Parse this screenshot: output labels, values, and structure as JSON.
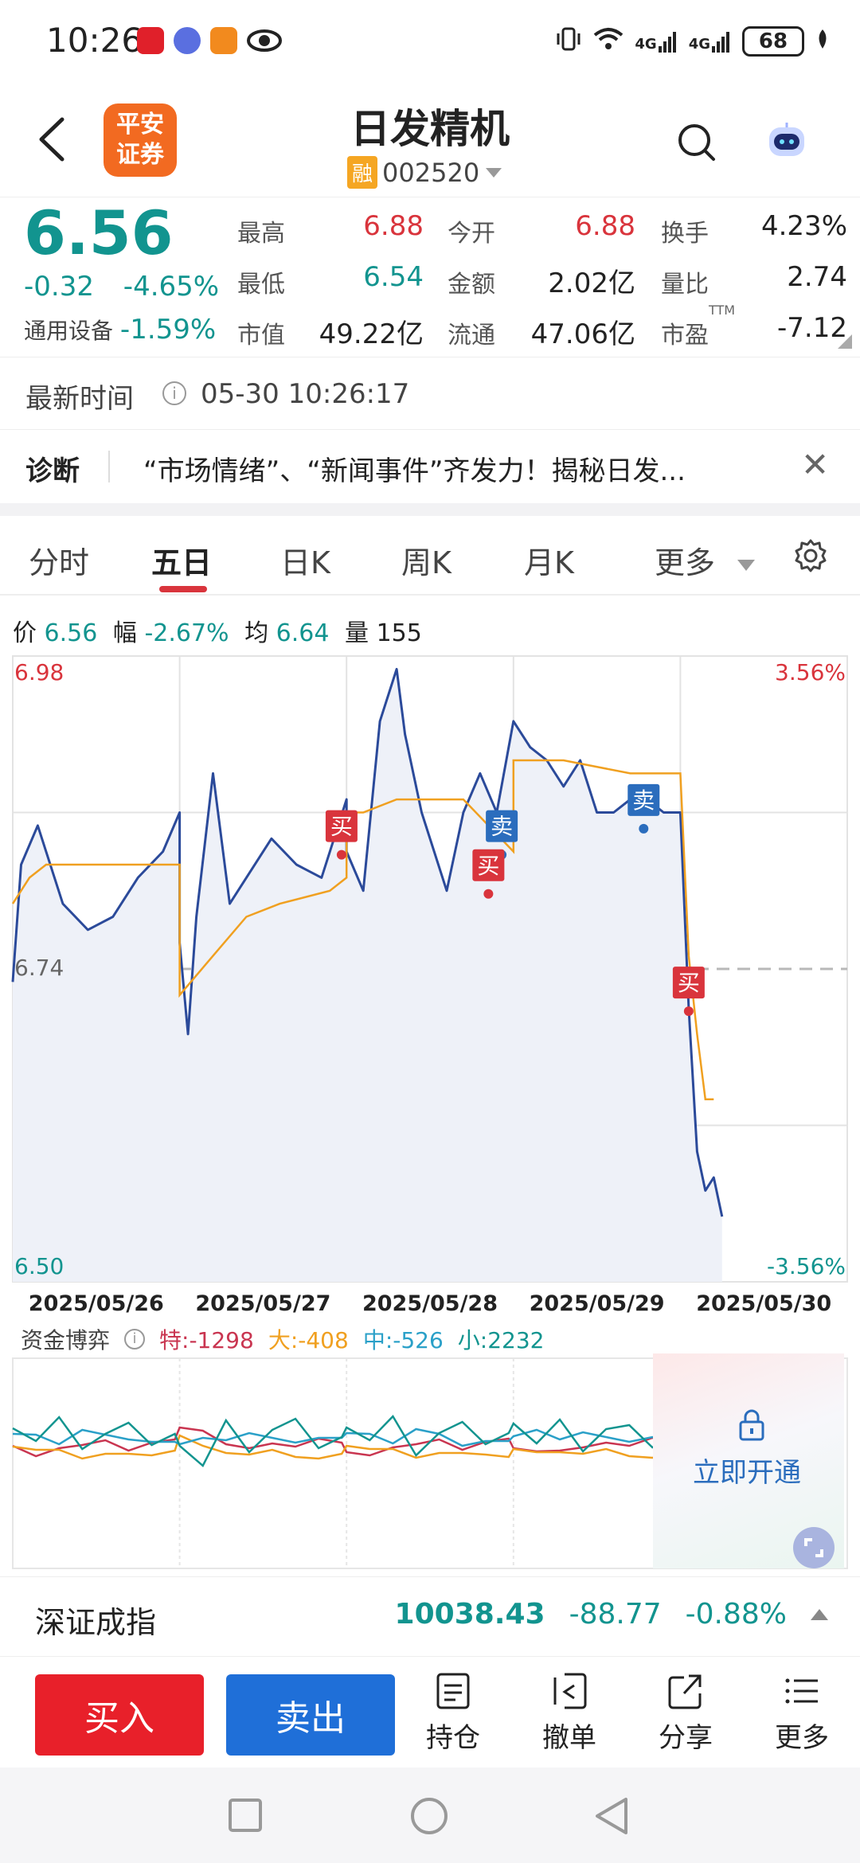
{
  "status_bar": {
    "time": "10:26",
    "network": "4G",
    "battery": "68"
  },
  "header": {
    "broker_logo_text": "平安\n证券",
    "stock_name": "日发精机",
    "rong_badge": "融",
    "stock_code": "002520"
  },
  "quote": {
    "last_price": "6.56",
    "change": "-0.32",
    "change_pct": "-4.65%",
    "sector_name": "通用设备",
    "sector_pct": "-1.59%",
    "fields": [
      {
        "label": "最高",
        "value": "6.88",
        "color": "#d9343c"
      },
      {
        "label": "今开",
        "value": "6.88",
        "color": "#d9343c"
      },
      {
        "label": "换手",
        "value": "4.23%",
        "color": "#222222"
      },
      {
        "label": "最低",
        "value": "6.54",
        "color": "#12948f"
      },
      {
        "label": "金额",
        "value": "2.02亿",
        "color": "#222222"
      },
      {
        "label": "量比",
        "value": "2.74",
        "color": "#222222"
      },
      {
        "label": "市值",
        "value": "49.22亿",
        "color": "#222222"
      },
      {
        "label": "流通",
        "value": "47.06亿",
        "color": "#222222"
      },
      {
        "label": "市盈",
        "value": "-7.12",
        "color": "#222222"
      }
    ],
    "pe_superscript": "TTM"
  },
  "update": {
    "label": "最新时间",
    "timestamp": "05-30 10:26:17"
  },
  "diagnosis": {
    "label": "诊断",
    "text": "“市场情绪”、“新闻事件”齐发力！揭秘日发..."
  },
  "tabs": [
    {
      "label": "分时",
      "active": false
    },
    {
      "label": "五日",
      "active": true
    },
    {
      "label": "日K",
      "active": false
    },
    {
      "label": "周K",
      "active": false
    },
    {
      "label": "月K",
      "active": false
    },
    {
      "label": "更多",
      "active": false
    }
  ],
  "info_line": {
    "price_label": "价",
    "price": "6.56",
    "range_label": "幅",
    "range": "-2.67%",
    "avg_label": "均",
    "avg": "6.64",
    "vol_label": "量",
    "vol": "155"
  },
  "chart_data": {
    "type": "line",
    "title": "",
    "y_top_label": "6.98",
    "y_mid_label": "6.74",
    "y_bottom_label": "6.50",
    "pct_top_label": "3.56%",
    "pct_bottom_label": "-3.56%",
    "ylim": [
      6.5,
      6.98
    ],
    "reference_price": 6.74,
    "categories": [
      "2025/05/26",
      "2025/05/27",
      "2025/05/28",
      "2025/05/29",
      "2025/05/30"
    ],
    "series": [
      {
        "name": "价",
        "color": "#2b4a9a",
        "x": [
          0.0,
          0.05,
          0.15,
          0.3,
          0.45,
          0.6,
          0.75,
          0.9,
          1.0,
          1.0,
          1.05,
          1.1,
          1.2,
          1.3,
          1.4,
          1.55,
          1.7,
          1.85,
          2.0,
          2.0,
          2.1,
          2.2,
          2.3,
          2.35,
          2.45,
          2.6,
          2.7,
          2.8,
          2.9,
          3.0,
          3.0,
          3.1,
          3.2,
          3.3,
          3.4,
          3.5,
          3.6,
          3.7,
          3.8,
          3.9,
          4.0,
          4.0,
          4.05,
          4.1,
          4.15,
          4.2,
          4.25
        ],
        "y": [
          6.73,
          6.82,
          6.85,
          6.79,
          6.77,
          6.78,
          6.81,
          6.83,
          6.86,
          6.76,
          6.69,
          6.78,
          6.89,
          6.79,
          6.81,
          6.84,
          6.82,
          6.81,
          6.87,
          6.83,
          6.8,
          6.93,
          6.97,
          6.92,
          6.86,
          6.8,
          6.86,
          6.89,
          6.86,
          6.93,
          6.93,
          6.91,
          6.9,
          6.88,
          6.9,
          6.86,
          6.86,
          6.87,
          6.87,
          6.86,
          6.86,
          6.86,
          6.71,
          6.6,
          6.57,
          6.58,
          6.55
        ]
      },
      {
        "name": "均",
        "color": "#f0a020",
        "x": [
          0.0,
          0.1,
          0.2,
          1.0,
          1.0,
          1.2,
          1.4,
          1.6,
          1.9,
          2.0,
          2.0,
          2.1,
          2.3,
          2.7,
          3.0,
          3.0,
          3.1,
          3.3,
          3.7,
          4.0,
          4.0,
          4.05,
          4.1,
          4.15,
          4.2
        ],
        "y": [
          6.79,
          6.81,
          6.82,
          6.82,
          6.72,
          6.75,
          6.78,
          6.79,
          6.8,
          6.81,
          6.86,
          6.86,
          6.87,
          6.87,
          6.83,
          6.9,
          6.9,
          6.9,
          6.89,
          6.89,
          6.89,
          6.75,
          6.69,
          6.64,
          6.64
        ]
      }
    ],
    "markers": [
      {
        "label": "买",
        "color": "#d9343c",
        "day": 1,
        "pos": 0.97,
        "price": 6.83
      },
      {
        "label": "卖",
        "color": "#2b6dbd",
        "day": 2,
        "pos": 0.93,
        "price": 6.83
      },
      {
        "label": "买",
        "color": "#d9343c",
        "day": 2,
        "pos": 0.85,
        "price": 6.8
      },
      {
        "label": "卖",
        "color": "#2b6dbd",
        "day": 3,
        "pos": 0.78,
        "price": 6.85
      },
      {
        "label": "买",
        "color": "#d9343c",
        "day": 4,
        "pos": 0.05,
        "price": 6.71
      }
    ]
  },
  "fund_flow": {
    "title": "资金博弈",
    "items": [
      {
        "label": "特:",
        "value": "-1298",
        "color": "#c93550"
      },
      {
        "label": "大:",
        "value": "-408",
        "color": "#f0a020"
      },
      {
        "label": "中:",
        "value": "-526",
        "color": "#2aa0c8"
      },
      {
        "label": "小:",
        "value": "2232",
        "color": "#12948f"
      }
    ],
    "unlock_label": "立即开通"
  },
  "index_bar": {
    "name": "深证成指",
    "value": "10038.43",
    "change": "-88.77",
    "change_pct": "-0.88%"
  },
  "actions": {
    "buy": "买入",
    "sell": "卖出",
    "items": [
      "持仓",
      "撤单",
      "分享",
      "更多"
    ]
  }
}
